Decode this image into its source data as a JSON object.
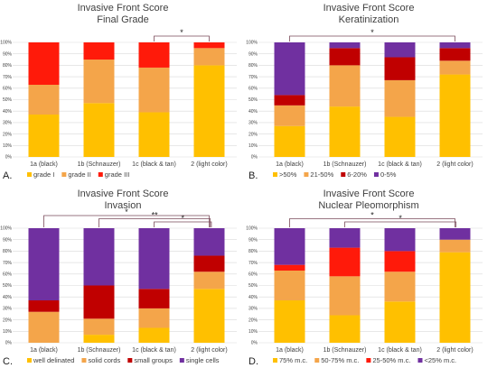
{
  "colors": {
    "yellow": "#FFC000",
    "light_orange": "#F4A54A",
    "orange": "#E8782A",
    "red": "#FF1A0A",
    "dark_red": "#C00000",
    "purple": "#7030A0",
    "magenta": "#CC00CC"
  },
  "chart_data": [
    {
      "panel": "A.",
      "type": "bar",
      "stacked": true,
      "title": "Invasive Front Score",
      "subtitle": "Final Grade",
      "categories": [
        "1a (black)",
        "1b (Schnauzer)",
        "1c (black & tan)",
        "2 (light color)"
      ],
      "yticks": [
        "0%",
        "10%",
        "20%",
        "30%",
        "40%",
        "50%",
        "60%",
        "70%",
        "80%",
        "90%",
        "100%"
      ],
      "ylim": [
        0,
        100
      ],
      "legend_position": "bottom",
      "series": [
        {
          "name": "grade I",
          "color": "#FFC000",
          "values": [
            37,
            47,
            39,
            80
          ]
        },
        {
          "name": "grade II",
          "color": "#F4A54A",
          "values": [
            26,
            38,
            39,
            15
          ]
        },
        {
          "name": "grade III",
          "color": "#FF1A0A",
          "values": [
            37,
            15,
            22,
            5
          ]
        }
      ],
      "significance": [
        {
          "from": 2,
          "to": 3,
          "label": "*"
        }
      ]
    },
    {
      "panel": "B.",
      "type": "bar",
      "stacked": true,
      "title": "Invasive Front Score",
      "subtitle": "Keratinization",
      "categories": [
        "1a (black)",
        "1b (Schnauzer)",
        "1c (black & tan)",
        "2 (light color)"
      ],
      "yticks": [
        "0%",
        "10%",
        "20%",
        "30%",
        "40%",
        "50%",
        "60%",
        "70%",
        "80%",
        "90%",
        "100%"
      ],
      "ylim": [
        0,
        100
      ],
      "legend_position": "bottom",
      "series": [
        {
          "name": ">50%",
          "color": "#FFC000",
          "values": [
            27,
            44,
            35,
            72
          ]
        },
        {
          "name": "21-50%",
          "color": "#F4A54A",
          "values": [
            18,
            36,
            32,
            12
          ]
        },
        {
          "name": "6-20%",
          "color": "#C00000",
          "values": [
            9,
            15,
            20,
            11
          ]
        },
        {
          "name": "0-5%",
          "color": "#7030A0",
          "values": [
            46,
            5,
            13,
            5
          ]
        }
      ],
      "significance": [
        {
          "from": 0,
          "to": 3,
          "label": "*"
        }
      ]
    },
    {
      "panel": "C.",
      "type": "bar",
      "stacked": true,
      "title": "Invasive Front Score",
      "subtitle": "Invasion",
      "categories": [
        "1a (black)",
        "1b (Schnauzer)",
        "1c (black & tan)",
        "2 (light color)"
      ],
      "yticks": [
        "0%",
        "10%",
        "20%",
        "30%",
        "40%",
        "50%",
        "60%",
        "70%",
        "80%",
        "90%",
        "100%"
      ],
      "ylim": [
        0,
        100
      ],
      "legend_position": "bottom",
      "series": [
        {
          "name": "well delinated",
          "color": "#FFC000",
          "values": [
            0,
            7,
            13,
            47
          ]
        },
        {
          "name": "solid cords",
          "color": "#F4A54A",
          "values": [
            27,
            14,
            17,
            15
          ]
        },
        {
          "name": "small groups",
          "color": "#C00000",
          "values": [
            10,
            29,
            17,
            14
          ]
        },
        {
          "name": "single cells",
          "color": "#7030A0",
          "values": [
            63,
            50,
            53,
            24
          ]
        }
      ],
      "significance": [
        {
          "from": 0,
          "to": 3,
          "label": "*"
        },
        {
          "from": 1,
          "to": 3,
          "label": "**"
        },
        {
          "from": 2,
          "to": 3,
          "label": "*"
        }
      ]
    },
    {
      "panel": "D.",
      "type": "bar",
      "stacked": true,
      "title": "Invasive Front Score",
      "subtitle": "Nuclear Pleomorphism",
      "categories": [
        "1a (black)",
        "1b (Schnauzer)",
        "1c (black & tan)",
        "2 (light color)"
      ],
      "yticks": [
        "0%",
        "10%",
        "20%",
        "30%",
        "40%",
        "50%",
        "60%",
        "70%",
        "80%",
        "90%",
        "100%"
      ],
      "ylim": [
        0,
        100
      ],
      "legend_position": "bottom",
      "series": [
        {
          "name": "75% m.c.",
          "color": "#FFC000",
          "values": [
            37,
            24,
            36,
            79
          ]
        },
        {
          "name": "50-75% m.c.",
          "color": "#F4A54A",
          "values": [
            26,
            34,
            26,
            11
          ]
        },
        {
          "name": "25-50% m.c.",
          "color": "#FF1A0A",
          "values": [
            5,
            25,
            18,
            0
          ]
        },
        {
          "name": "<25% m.c.",
          "color": "#7030A0",
          "values": [
            32,
            17,
            20,
            10
          ]
        }
      ],
      "significance": [
        {
          "from": 0,
          "to": 3,
          "label": "*"
        },
        {
          "from": 1,
          "to": 3,
          "label": "*"
        }
      ]
    }
  ]
}
